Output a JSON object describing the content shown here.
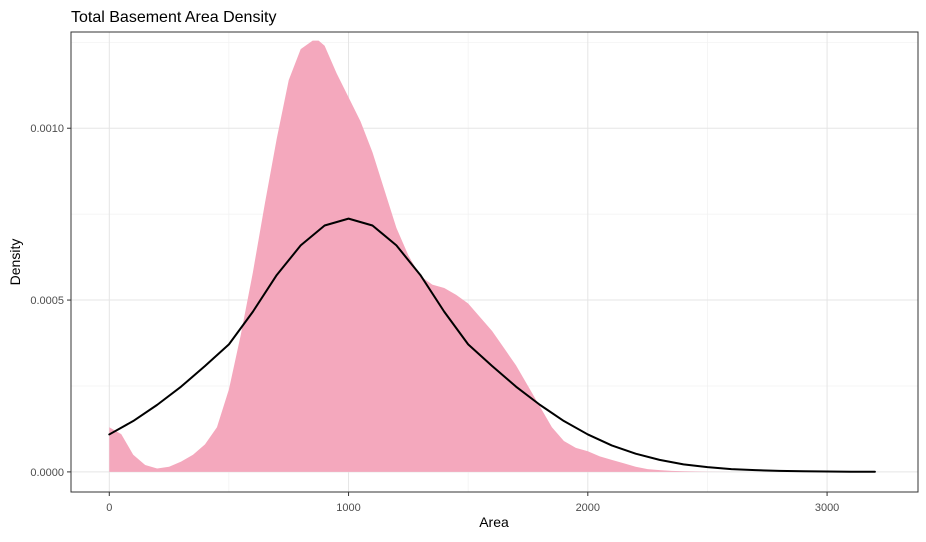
{
  "chart_data": {
    "type": "area",
    "title": "Total Basement Area Density",
    "xlabel": "Area",
    "ylabel": "Density",
    "xlim": [
      -160,
      3380
    ],
    "ylim": [
      -5.85e-05,
      0.00128
    ],
    "xticks": [
      0,
      1000,
      2000,
      3000
    ],
    "yticks": [
      0.0,
      0.0005,
      0.001
    ],
    "xtick_labels": [
      "0",
      "1000",
      "2000",
      "3000"
    ],
    "ytick_labels": [
      "0.0000",
      "0.0005",
      "0.0010"
    ],
    "grid": true,
    "legend": "none",
    "series": [
      {
        "kind": "density-area",
        "color": "#f4a8bd",
        "x": [
          0,
          50,
          100,
          150,
          200,
          250,
          300,
          350,
          400,
          450,
          500,
          550,
          600,
          650,
          700,
          750,
          800,
          850,
          875,
          900,
          950,
          1000,
          1050,
          1100,
          1150,
          1200,
          1250,
          1300,
          1350,
          1400,
          1450,
          1500,
          1550,
          1600,
          1650,
          1700,
          1750,
          1800,
          1850,
          1900,
          1950,
          2000,
          2050,
          2100,
          2150,
          2200,
          2250,
          2300,
          2350,
          2400,
          2450,
          2500,
          2600,
          2700,
          2800,
          2900,
          3000,
          3200
        ],
        "y": [
          0.00013,
          0.00011,
          5e-05,
          2e-05,
          1e-05,
          1.5e-05,
          3e-05,
          5e-05,
          8e-05,
          0.00013,
          0.00024,
          0.0004,
          0.00058,
          0.00078,
          0.00097,
          0.00114,
          0.00123,
          0.001255,
          0.001255,
          0.00124,
          0.00116,
          0.00109,
          0.00102,
          0.00093,
          0.00082,
          0.00071,
          0.00063,
          0.00057,
          0.000545,
          0.000535,
          0.000515,
          0.00049,
          0.00045,
          0.00041,
          0.00036,
          0.00031,
          0.00025,
          0.00019,
          0.00013,
          9e-05,
          7e-05,
          6e-05,
          4.5e-05,
          3.5e-05,
          2.5e-05,
          1.5e-05,
          8e-06,
          5e-06,
          3e-06,
          2e-06,
          1e-06,
          5e-07,
          0.0,
          0.0,
          0.0,
          0.0,
          0.0,
          0.0
        ]
      },
      {
        "kind": "normal-curve",
        "color": "#000000",
        "x": [
          0,
          100,
          200,
          300,
          400,
          500,
          600,
          700,
          800,
          900,
          1000,
          1100,
          1200,
          1300,
          1400,
          1500,
          1600,
          1700,
          1800,
          1900,
          2000,
          2100,
          2200,
          2300,
          2400,
          2500,
          2600,
          2700,
          2800,
          2900,
          3000,
          3100,
          3200
        ],
        "y": [
          0.000109,
          0.000148,
          0.000195,
          0.000248,
          0.000308,
          0.000371,
          0.000466,
          0.000573,
          0.000659,
          0.000717,
          0.000737,
          0.000717,
          0.000659,
          0.000573,
          0.000466,
          0.000371,
          0.000308,
          0.000248,
          0.000195,
          0.000148,
          0.000109,
          7.7e-05,
          5.3e-05,
          3.5e-05,
          2.2e-05,
          1.4e-05,
          8e-06,
          5e-06,
          3e-06,
          2e-06,
          1e-06,
          6e-07,
          3e-07
        ]
      }
    ]
  }
}
